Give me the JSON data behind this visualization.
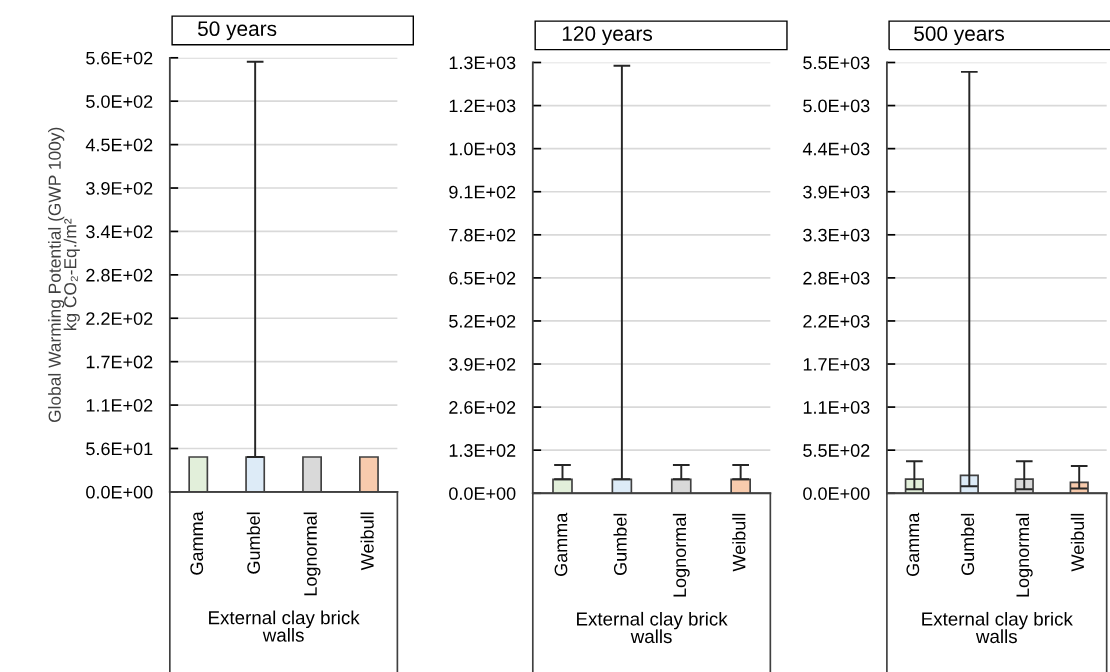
{
  "chart_data": [
    {
      "type": "bar",
      "title": "50 years",
      "ylabel": "Global Warming Potential (GWP 100y)\nkg CO₂-Eq./m²",
      "xlabel": "External clay brick\nwalls",
      "categories": [
        "Gamma",
        "Gumbel",
        "Lognormal",
        "Weibull"
      ],
      "values": [
        45,
        45,
        45,
        45
      ],
      "colors": [
        "#e2efda",
        "#ddebf7",
        "#d9d9d9",
        "#f8cbad"
      ],
      "errors": [
        null,
        [
          45,
          555
        ],
        null,
        null
      ],
      "ylim": [
        0,
        560
      ],
      "yticks": [
        {
          "value": 0,
          "label": "0.0E+00"
        },
        {
          "value": 56,
          "label": "5.6E+01"
        },
        {
          "value": 112,
          "label": "1.1E+02"
        },
        {
          "value": 168,
          "label": "1.7E+02"
        },
        {
          "value": 224,
          "label": "2.2E+02"
        },
        {
          "value": 280,
          "label": "2.8E+02"
        },
        {
          "value": 336,
          "label": "3.4E+02"
        },
        {
          "value": 392,
          "label": "3.9E+02"
        },
        {
          "value": 448,
          "label": "4.5E+02"
        },
        {
          "value": 504,
          "label": "5.0E+02"
        },
        {
          "value": 560,
          "label": "5.6E+02"
        }
      ],
      "grid": "y"
    },
    {
      "type": "bar",
      "title": "120 years",
      "xlabel": "External clay brick\nwalls",
      "categories": [
        "Gamma",
        "Gumbel",
        "Lognormal",
        "Weibull"
      ],
      "values": [
        42,
        42,
        42,
        42
      ],
      "colors": [
        "#e2efda",
        "#ddebf7",
        "#d9d9d9",
        "#f8cbad"
      ],
      "errors": [
        [
          42,
          85
        ],
        [
          42,
          1290
        ],
        [
          42,
          85
        ],
        [
          42,
          85
        ]
      ],
      "ylim": [
        0,
        1300
      ],
      "yticks": [
        {
          "value": 0,
          "label": "0.0E+00"
        },
        {
          "value": 130,
          "label": "1.3E+02"
        },
        {
          "value": 260,
          "label": "2.6E+02"
        },
        {
          "value": 390,
          "label": "3.9E+02"
        },
        {
          "value": 520,
          "label": "5.2E+02"
        },
        {
          "value": 650,
          "label": "6.5E+02"
        },
        {
          "value": 780,
          "label": "7.8E+02"
        },
        {
          "value": 910,
          "label": "9.1E+02"
        },
        {
          "value": 1040,
          "label": "1.0E+03"
        },
        {
          "value": 1170,
          "label": "1.2E+03"
        },
        {
          "value": 1300,
          "label": "1.3E+03"
        }
      ],
      "grid": "y"
    },
    {
      "type": "bar",
      "title": "500 years",
      "xlabel": "External clay brick\nwalls",
      "categories": [
        "Gamma",
        "Gumbel",
        "Lognormal",
        "Weibull"
      ],
      "values": [
        180,
        230,
        180,
        140
      ],
      "colors": [
        "#e2efda",
        "#ddebf7",
        "#d9d9d9",
        "#f8cbad"
      ],
      "errors": [
        [
          50,
          410
        ],
        [
          90,
          5400
        ],
        [
          50,
          410
        ],
        [
          60,
          350
        ]
      ],
      "ylim": [
        0,
        5520
      ],
      "yticks": [
        {
          "value": 0,
          "label": "0.0E+00"
        },
        {
          "value": 552,
          "label": "5.5E+02"
        },
        {
          "value": 1104,
          "label": "1.1E+03"
        },
        {
          "value": 1656,
          "label": "1.7E+03"
        },
        {
          "value": 2208,
          "label": "2.2E+03"
        },
        {
          "value": 2760,
          "label": "2.8E+03"
        },
        {
          "value": 3312,
          "label": "3.3E+03"
        },
        {
          "value": 3864,
          "label": "3.9E+03"
        },
        {
          "value": 4416,
          "label": "4.4E+03"
        },
        {
          "value": 4968,
          "label": "5.0E+03"
        },
        {
          "value": 5520,
          "label": "5.5E+03"
        }
      ],
      "grid": "y"
    }
  ]
}
